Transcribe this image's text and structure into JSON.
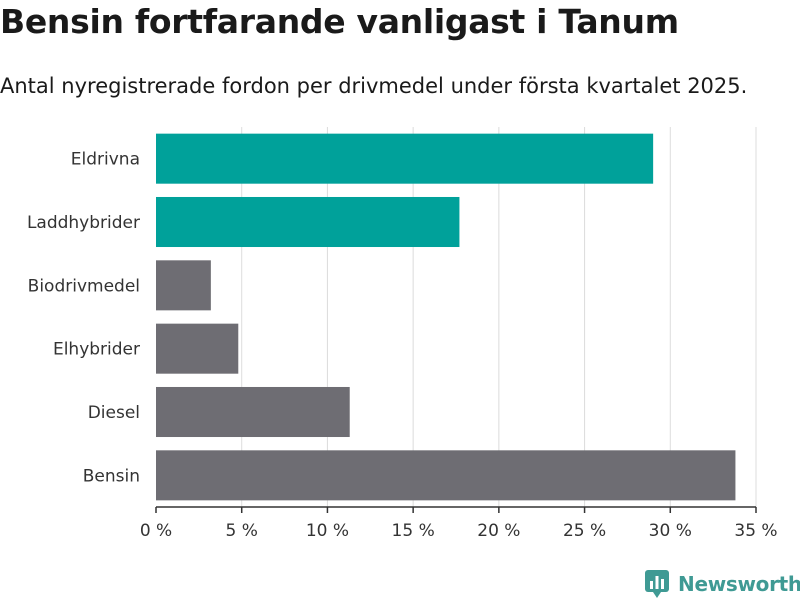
{
  "header": {
    "title": "Bensin fortfarande vanligast i Tanum",
    "subtitle": "Antal nyregistrerade fordon per drivmedel under första kvartalet 2025."
  },
  "brand": {
    "name": "Newsworthy",
    "icon": "newsworthy-logo-icon",
    "color": "#3f9a94"
  },
  "chart_data": {
    "type": "bar",
    "orientation": "horizontal",
    "categories": [
      "Eldrivna",
      "Laddhybrider",
      "Biodrivmedel",
      "Elhybrider",
      "Diesel",
      "Bensin"
    ],
    "values": [
      29.0,
      17.7,
      3.2,
      4.8,
      11.3,
      33.8
    ],
    "highlight": [
      true,
      true,
      false,
      false,
      false,
      false
    ],
    "colors": {
      "highlight": "#00a19a",
      "default": "#6e6d73"
    },
    "xlim": [
      0,
      35
    ],
    "xticks": [
      0,
      5,
      10,
      15,
      20,
      25,
      30,
      35
    ],
    "tick_suffix": " %",
    "grid": true,
    "title": "Bensin fortfarande vanligast i Tanum",
    "xlabel": "",
    "ylabel": ""
  }
}
